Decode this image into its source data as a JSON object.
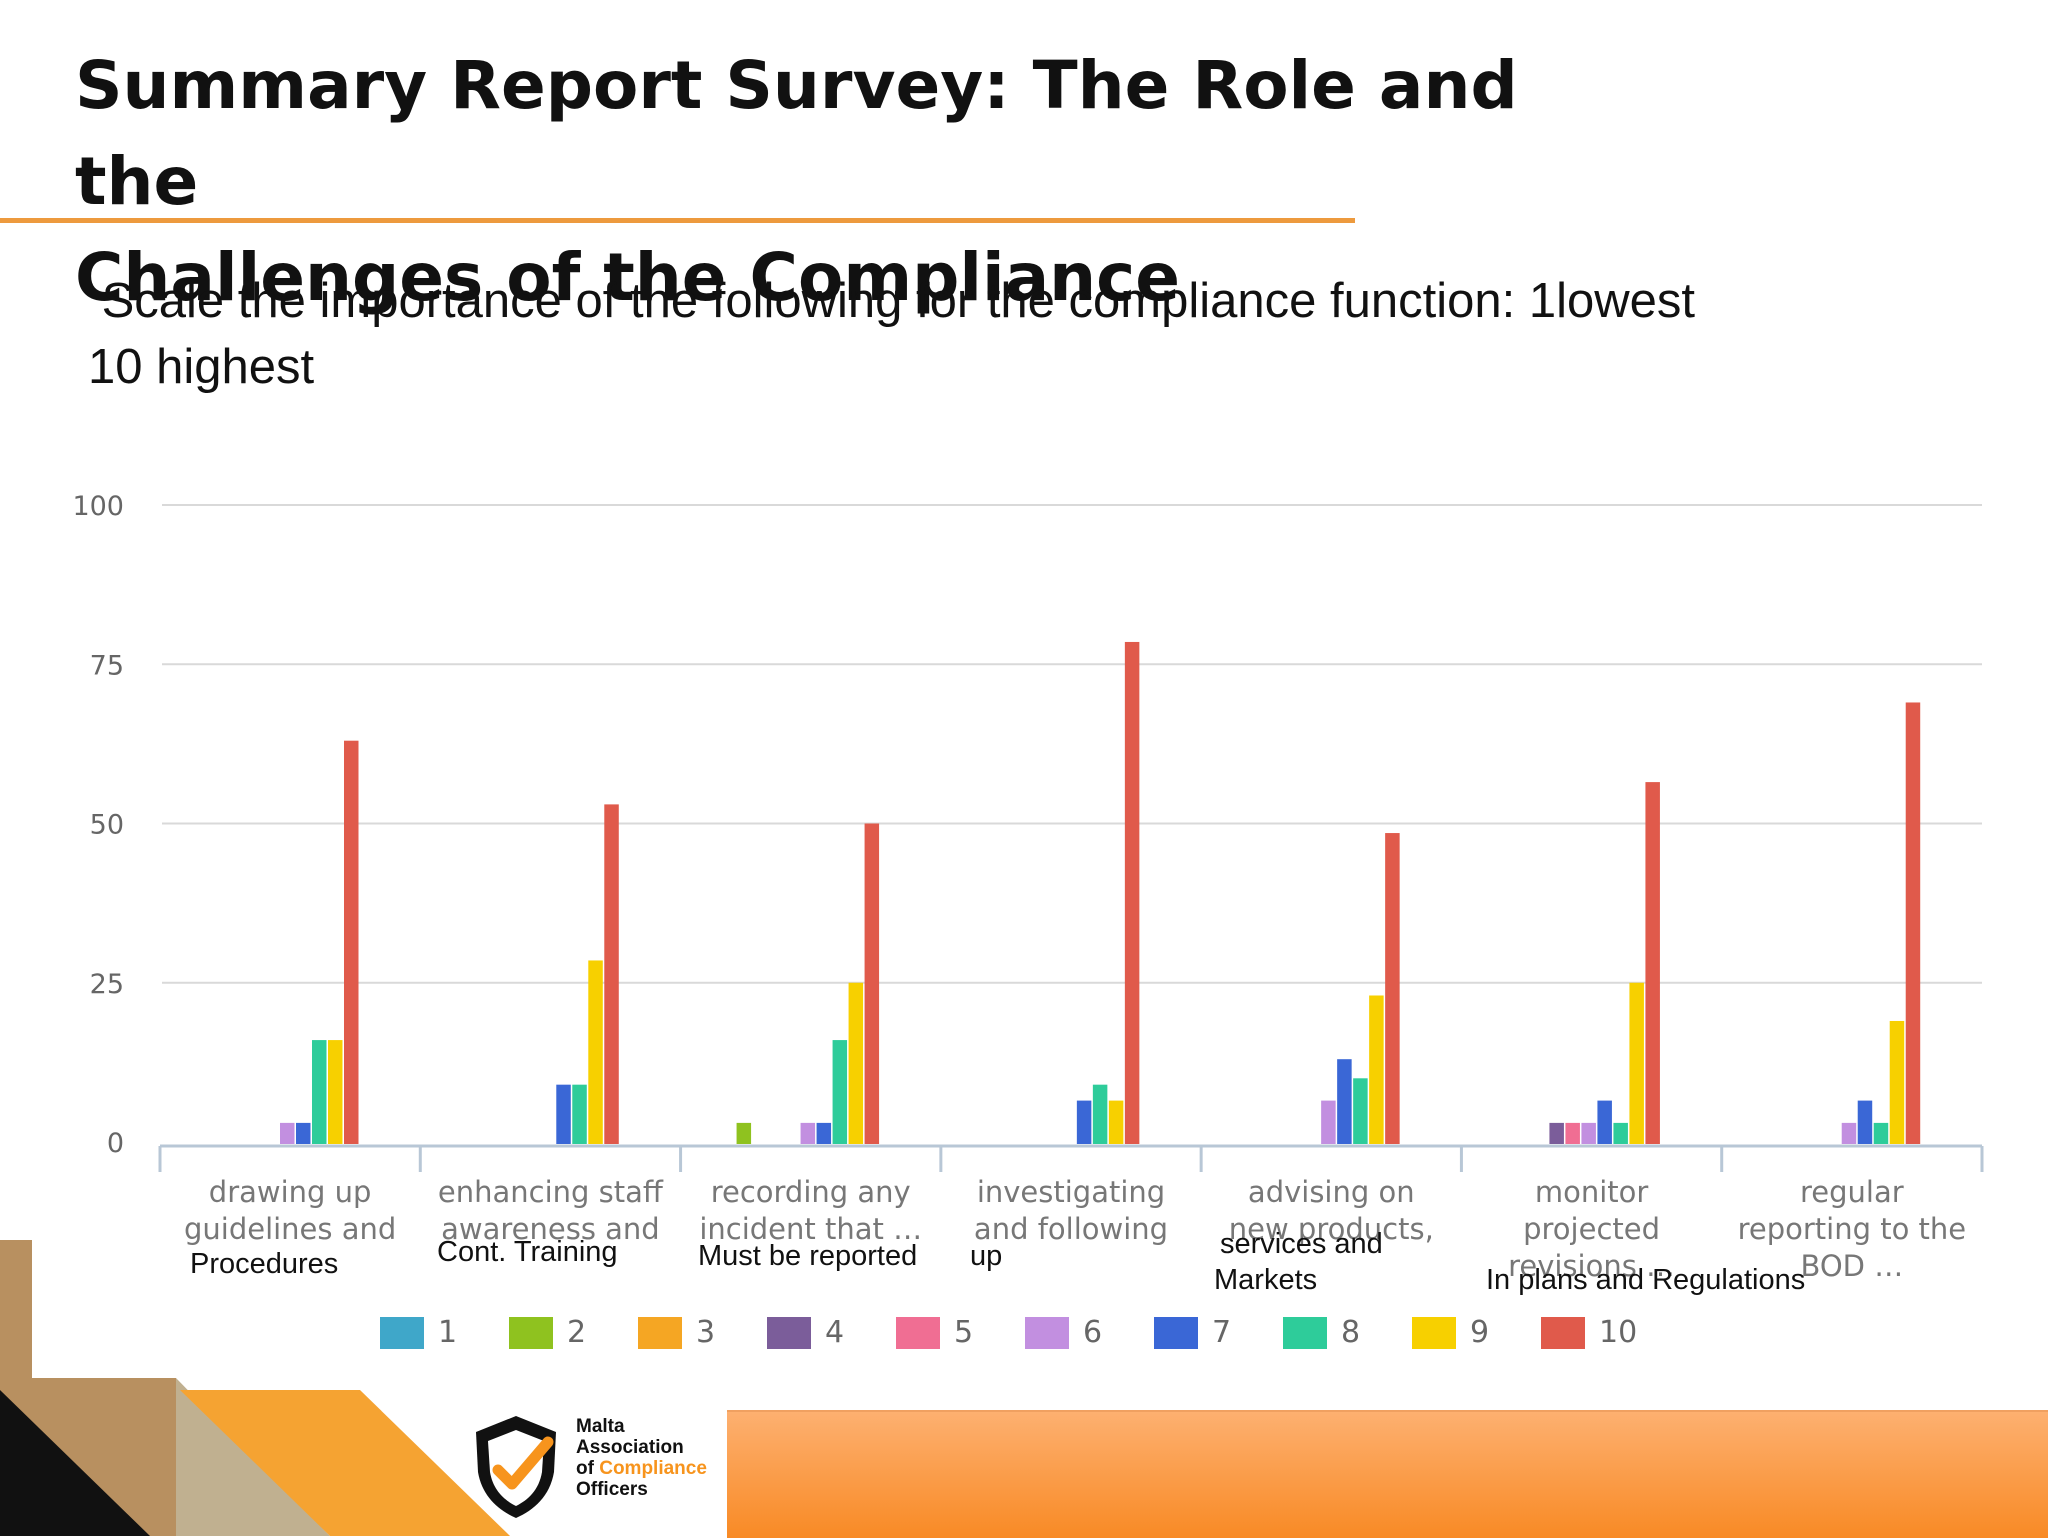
{
  "slide": {
    "title_line1": "Summary Report Survey: The Role and the",
    "title_line2": "Challenges of the Compliance",
    "subtitle_line1": " Scale the importance of the following for the compliance function: 1lowest",
    "subtitle_line2": "10 highest"
  },
  "annotations": {
    "a1": "Procedures",
    "a2": "Cont. Training",
    "a3": "Must be reported",
    "a4": "up",
    "a5a": "services and",
    "a5b": "Markets",
    "a6": "In plans and Regulations"
  },
  "logo": {
    "line1": "Malta",
    "line2": "Association",
    "line3a": "of ",
    "line3b": "Compliance",
    "line4": "Officers"
  },
  "colors": {
    "accent_orange": "#ed9a3e",
    "series": [
      "#3fa7c9",
      "#8fc21f",
      "#f5a623",
      "#7b5d9a",
      "#f06e93",
      "#c28fe0",
      "#3a67d6",
      "#2ecc9a",
      "#f7d000",
      "#e05a4b"
    ]
  },
  "chart_data": {
    "type": "bar",
    "title": "",
    "xlabel": "",
    "ylabel": "",
    "ylim": [
      0,
      100
    ],
    "yticks": [
      0,
      25,
      50,
      75,
      100
    ],
    "grid": true,
    "legend_position": "bottom",
    "categories": [
      [
        "drawing up",
        "guidelines and"
      ],
      [
        "enhancing staff",
        "awareness and"
      ],
      [
        "recording any",
        "incident that …"
      ],
      [
        "investigating",
        "and following"
      ],
      [
        "advising on",
        "new products,"
      ],
      [
        "monitor",
        "projected",
        "revisions …"
      ],
      [
        "regular",
        "reporting to the",
        "BOD …"
      ]
    ],
    "series": [
      {
        "name": "1",
        "values": [
          0,
          0,
          0,
          0,
          0,
          0,
          0
        ]
      },
      {
        "name": "2",
        "values": [
          0,
          0,
          3,
          0,
          0,
          0,
          0
        ]
      },
      {
        "name": "3",
        "values": [
          0,
          0,
          0,
          0,
          0,
          0,
          0
        ]
      },
      {
        "name": "4",
        "values": [
          0,
          0,
          0,
          0,
          0,
          3,
          0
        ]
      },
      {
        "name": "5",
        "values": [
          0,
          0,
          0,
          0,
          0,
          3,
          0
        ]
      },
      {
        "name": "6",
        "values": [
          3,
          0,
          3,
          0,
          6.5,
          3,
          3
        ]
      },
      {
        "name": "7",
        "values": [
          3,
          9,
          3,
          6.5,
          13,
          6.5,
          6.5
        ]
      },
      {
        "name": "8",
        "values": [
          16,
          9,
          16,
          9,
          10,
          3,
          3
        ]
      },
      {
        "name": "9",
        "values": [
          16,
          28.5,
          25,
          6.5,
          23,
          25,
          19
        ]
      },
      {
        "name": "10",
        "values": [
          63,
          53,
          50,
          78.5,
          48.5,
          56.5,
          69
        ]
      }
    ]
  }
}
